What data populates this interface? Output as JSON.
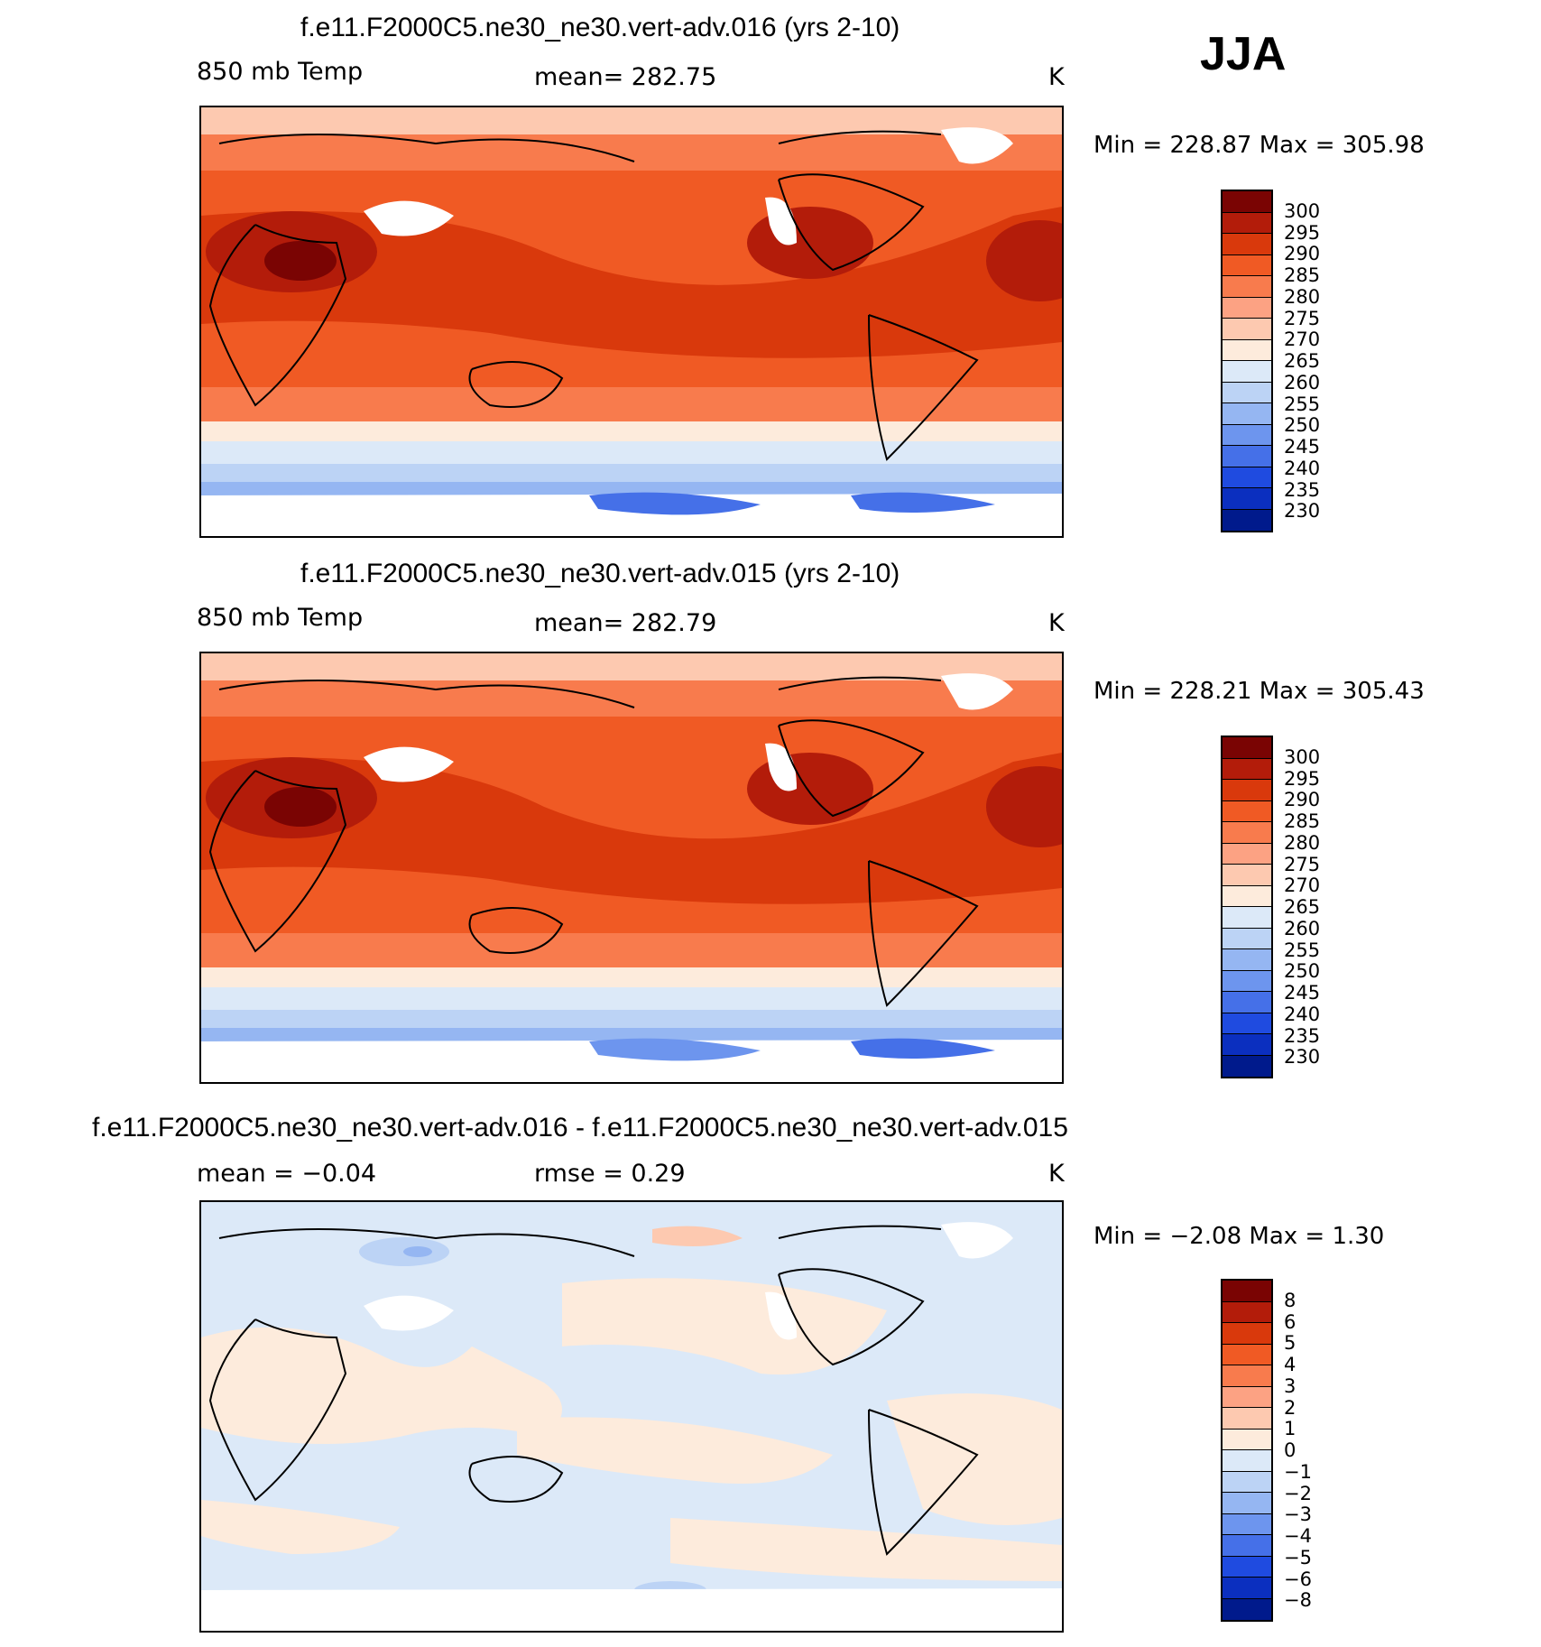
{
  "season": "JJA",
  "panels": [
    {
      "title": "f.e11.F2000C5.ne30_ne30.vert-adv.016 (yrs 2-10)",
      "left_label": "850 mb Temp",
      "center_label": "mean=  282.75",
      "unit": "K",
      "minmax": "Min  =  228.87  Max  =  305.98",
      "colorbar_labels": [
        "300",
        "295",
        "290",
        "285",
        "280",
        "275",
        "270",
        "265",
        "260",
        "255",
        "250",
        "245",
        "240",
        "235",
        "230"
      ]
    },
    {
      "title": "f.e11.F2000C5.ne30_ne30.vert-adv.015 (yrs 2-10)",
      "left_label": "850 mb Temp",
      "center_label": "mean=  282.79",
      "unit": "K",
      "minmax": "Min  =  228.21  Max  =  305.43",
      "colorbar_labels": [
        "300",
        "295",
        "290",
        "285",
        "280",
        "275",
        "270",
        "265",
        "260",
        "255",
        "250",
        "245",
        "240",
        "235",
        "230"
      ]
    },
    {
      "title": "f.e11.F2000C5.ne30_ne30.vert-adv.016 - f.e11.F2000C5.ne30_ne30.vert-adv.015",
      "left_label": "mean  =    −0.04",
      "center_label": "rmse  =     0.29",
      "unit": "K",
      "minmax": "Min  =    −2.08  Max  =     1.30",
      "colorbar_labels": [
        "8",
        "6",
        "5",
        "4",
        "3",
        "2",
        "1",
        "0",
        "−1",
        "−2",
        "−3",
        "−4",
        "−5",
        "−6",
        "−8"
      ]
    }
  ],
  "colors": {
    "abs_scale": [
      "#7a0403",
      "#b31c0a",
      "#d9390c",
      "#f05a24",
      "#f87b4d",
      "#fca283",
      "#fdc9b0",
      "#fdebdc",
      "#dce9f8",
      "#bcd3f5",
      "#95b6f2",
      "#6d95ee",
      "#4570e8",
      "#1f4be0",
      "#0b2fbf",
      "#001a8c"
    ],
    "diff_scale": [
      "#7a0403",
      "#b31c0a",
      "#d9390c",
      "#f05a24",
      "#f87b4d",
      "#fca283",
      "#fdc9b0",
      "#fdebdc",
      "#dce9f8",
      "#bcd3f5",
      "#95b6f2",
      "#6d95ee",
      "#4570e8",
      "#1f4be0",
      "#0b2fbf",
      "#001a8c"
    ]
  }
}
